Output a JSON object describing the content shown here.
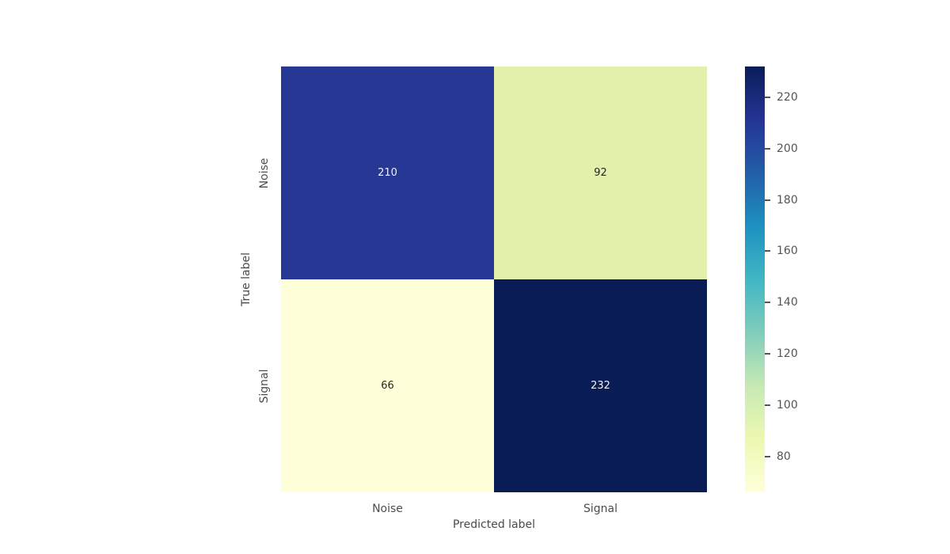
{
  "chart_data": {
    "type": "heatmap",
    "title": "",
    "xlabel": "Predicted label",
    "ylabel": "True label",
    "x_categories": [
      "Noise",
      "Signal"
    ],
    "y_categories": [
      "Noise",
      "Signal"
    ],
    "matrix": [
      [
        210,
        92
      ],
      [
        66,
        232
      ]
    ],
    "vmin": 66,
    "vmax": 232,
    "colormap": "YlGnBu",
    "cell_colors": [
      [
        "#263794",
        "#e2f0ad"
      ],
      [
        "#ffffd9",
        "#0a1c55"
      ]
    ],
    "cell_text_colors": [
      [
        "#f2f2f2",
        "#262626"
      ],
      [
        "#262626",
        "#f2f2f2"
      ]
    ],
    "colorbar_ticks": [
      80,
      100,
      120,
      140,
      160,
      180,
      200,
      220
    ],
    "colorbar_gradient": [
      "#ffffd9",
      "#edf8b1",
      "#c7e9b4",
      "#7fcdbb",
      "#41b6c4",
      "#1d91c0",
      "#225ea8",
      "#253494",
      "#081d58"
    ],
    "background": "#ffffff"
  }
}
